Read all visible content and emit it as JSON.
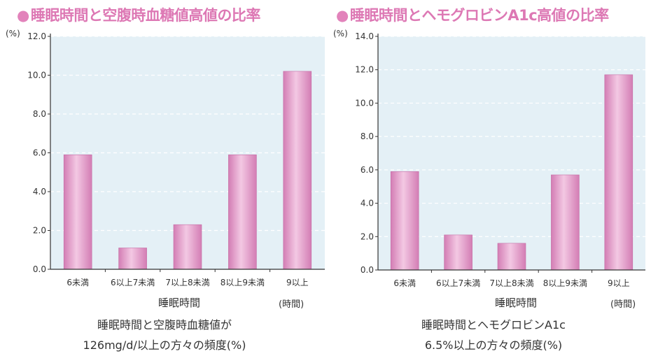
{
  "chart_data": [
    {
      "type": "bar",
      "title": "睡眠時間と空腹時血糖値高値の比率",
      "y_unit": "(%)",
      "yticks": [
        "0.0",
        "2.0",
        "4.0",
        "6.0",
        "8.0",
        "10.0",
        "12.0"
      ],
      "ylim": [
        0,
        12
      ],
      "categories": [
        "6未満",
        "6以上7未満",
        "7以上8未満",
        "8以上9未満",
        "9以上"
      ],
      "values": [
        5.9,
        1.1,
        2.3,
        5.9,
        10.2
      ],
      "xlabel": "睡眠時間",
      "x_unit": "(時間)",
      "caption": [
        "睡眠時間と空腹時血糖値が",
        "126mg/d/以上の方々の頻度(%)"
      ],
      "grid": true
    },
    {
      "type": "bar",
      "title": "睡眠時間とヘモグロビンA1c高値の比率",
      "y_unit": "(%)",
      "yticks": [
        "0.0",
        "2.0",
        "4.0",
        "6.0",
        "8.0",
        "10.0",
        "12.0",
        "14.0"
      ],
      "ylim": [
        0,
        14
      ],
      "categories": [
        "6未満",
        "6以上7未満",
        "7以上8未満",
        "8以上9未満",
        "9以上"
      ],
      "values": [
        5.9,
        2.1,
        1.6,
        5.7,
        11.7
      ],
      "xlabel": "睡眠時間",
      "x_unit": "(時間)",
      "caption": [
        "睡眠時間とヘモグロビンA1c",
        "6.5%以上の方々の頻度(%)"
      ],
      "grid": true
    }
  ],
  "colors": {
    "bar_top": "#f3c8e3",
    "bar_bottom": "#d37db4",
    "plot_bg": "#e4f0f6",
    "title": "#dd78b4",
    "grid": "#ffffff"
  }
}
